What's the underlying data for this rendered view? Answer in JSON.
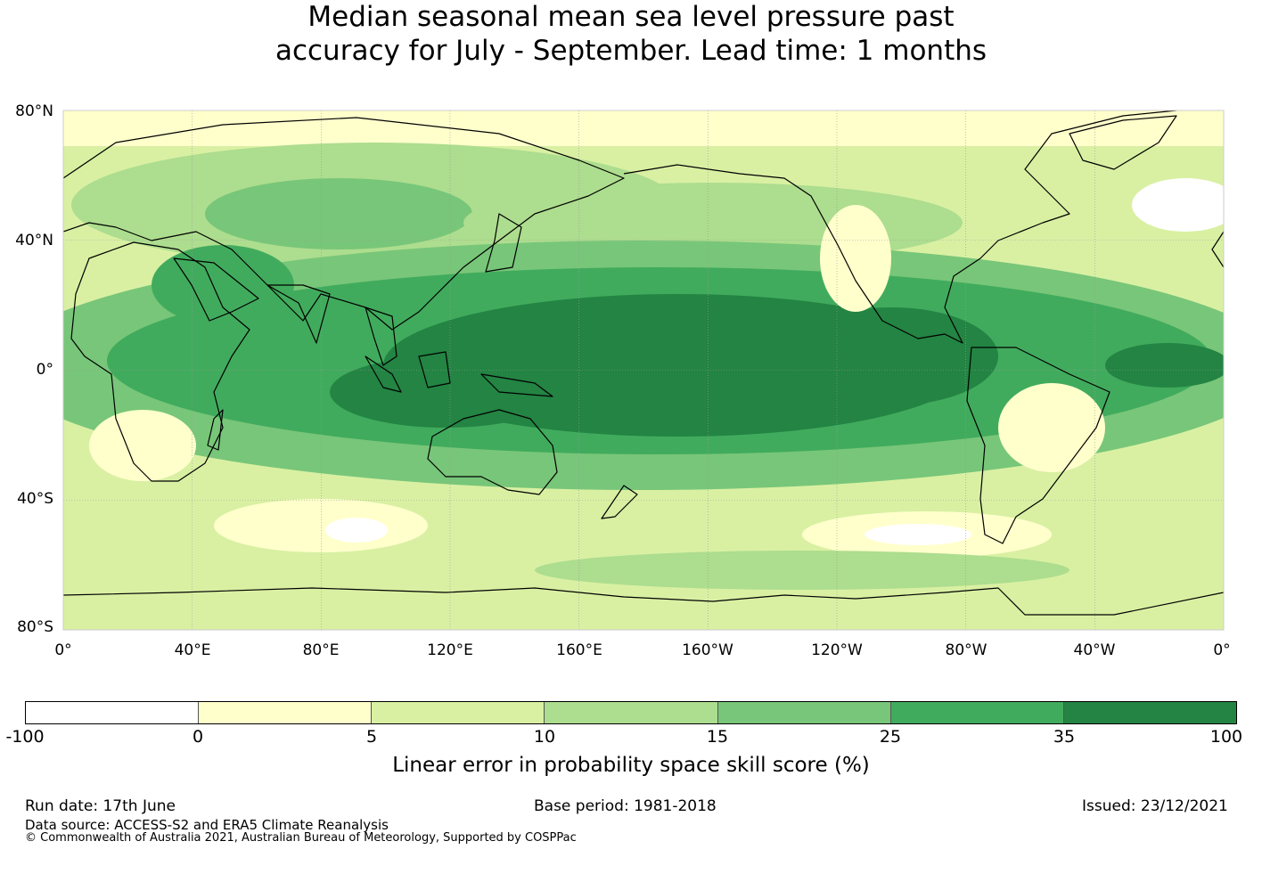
{
  "title": {
    "line1": "Median seasonal mean sea level pressure past",
    "line2": "accuracy for July - September. Lead time: 1 months"
  },
  "map": {
    "lat_labels": [
      "80°N",
      "40°N",
      "0°",
      "40°S",
      "80°S"
    ],
    "lon_labels": [
      "0°",
      "40°E",
      "80°E",
      "120°E",
      "160°E",
      "160°W",
      "120°W",
      "80°W",
      "40°W",
      "0°"
    ],
    "land_outline_color": "#000000",
    "grid_color": "#9a9a9a"
  },
  "colorbar": {
    "label": "Linear error in probability space skill score (%)",
    "ticks": [
      "-100",
      "0",
      "5",
      "10",
      "15",
      "25",
      "35",
      "100"
    ],
    "colors": [
      "#ffffff",
      "#ffffcc",
      "#d9f0a3",
      "#addd8e",
      "#78c679",
      "#41ab5d",
      "#238443"
    ]
  },
  "footer": {
    "run_date": "Run date: 17th June",
    "base_period": "Base period: 1981-2018",
    "issued": "Issued: 23/12/2021",
    "data_source": "Data source: ACCESS-S2 and ERA5 Climate Reanalysis",
    "copyright": "© Commonwealth of Australia 2021, Australian Bureau of Meteorology, Supported by COSPPac"
  }
}
